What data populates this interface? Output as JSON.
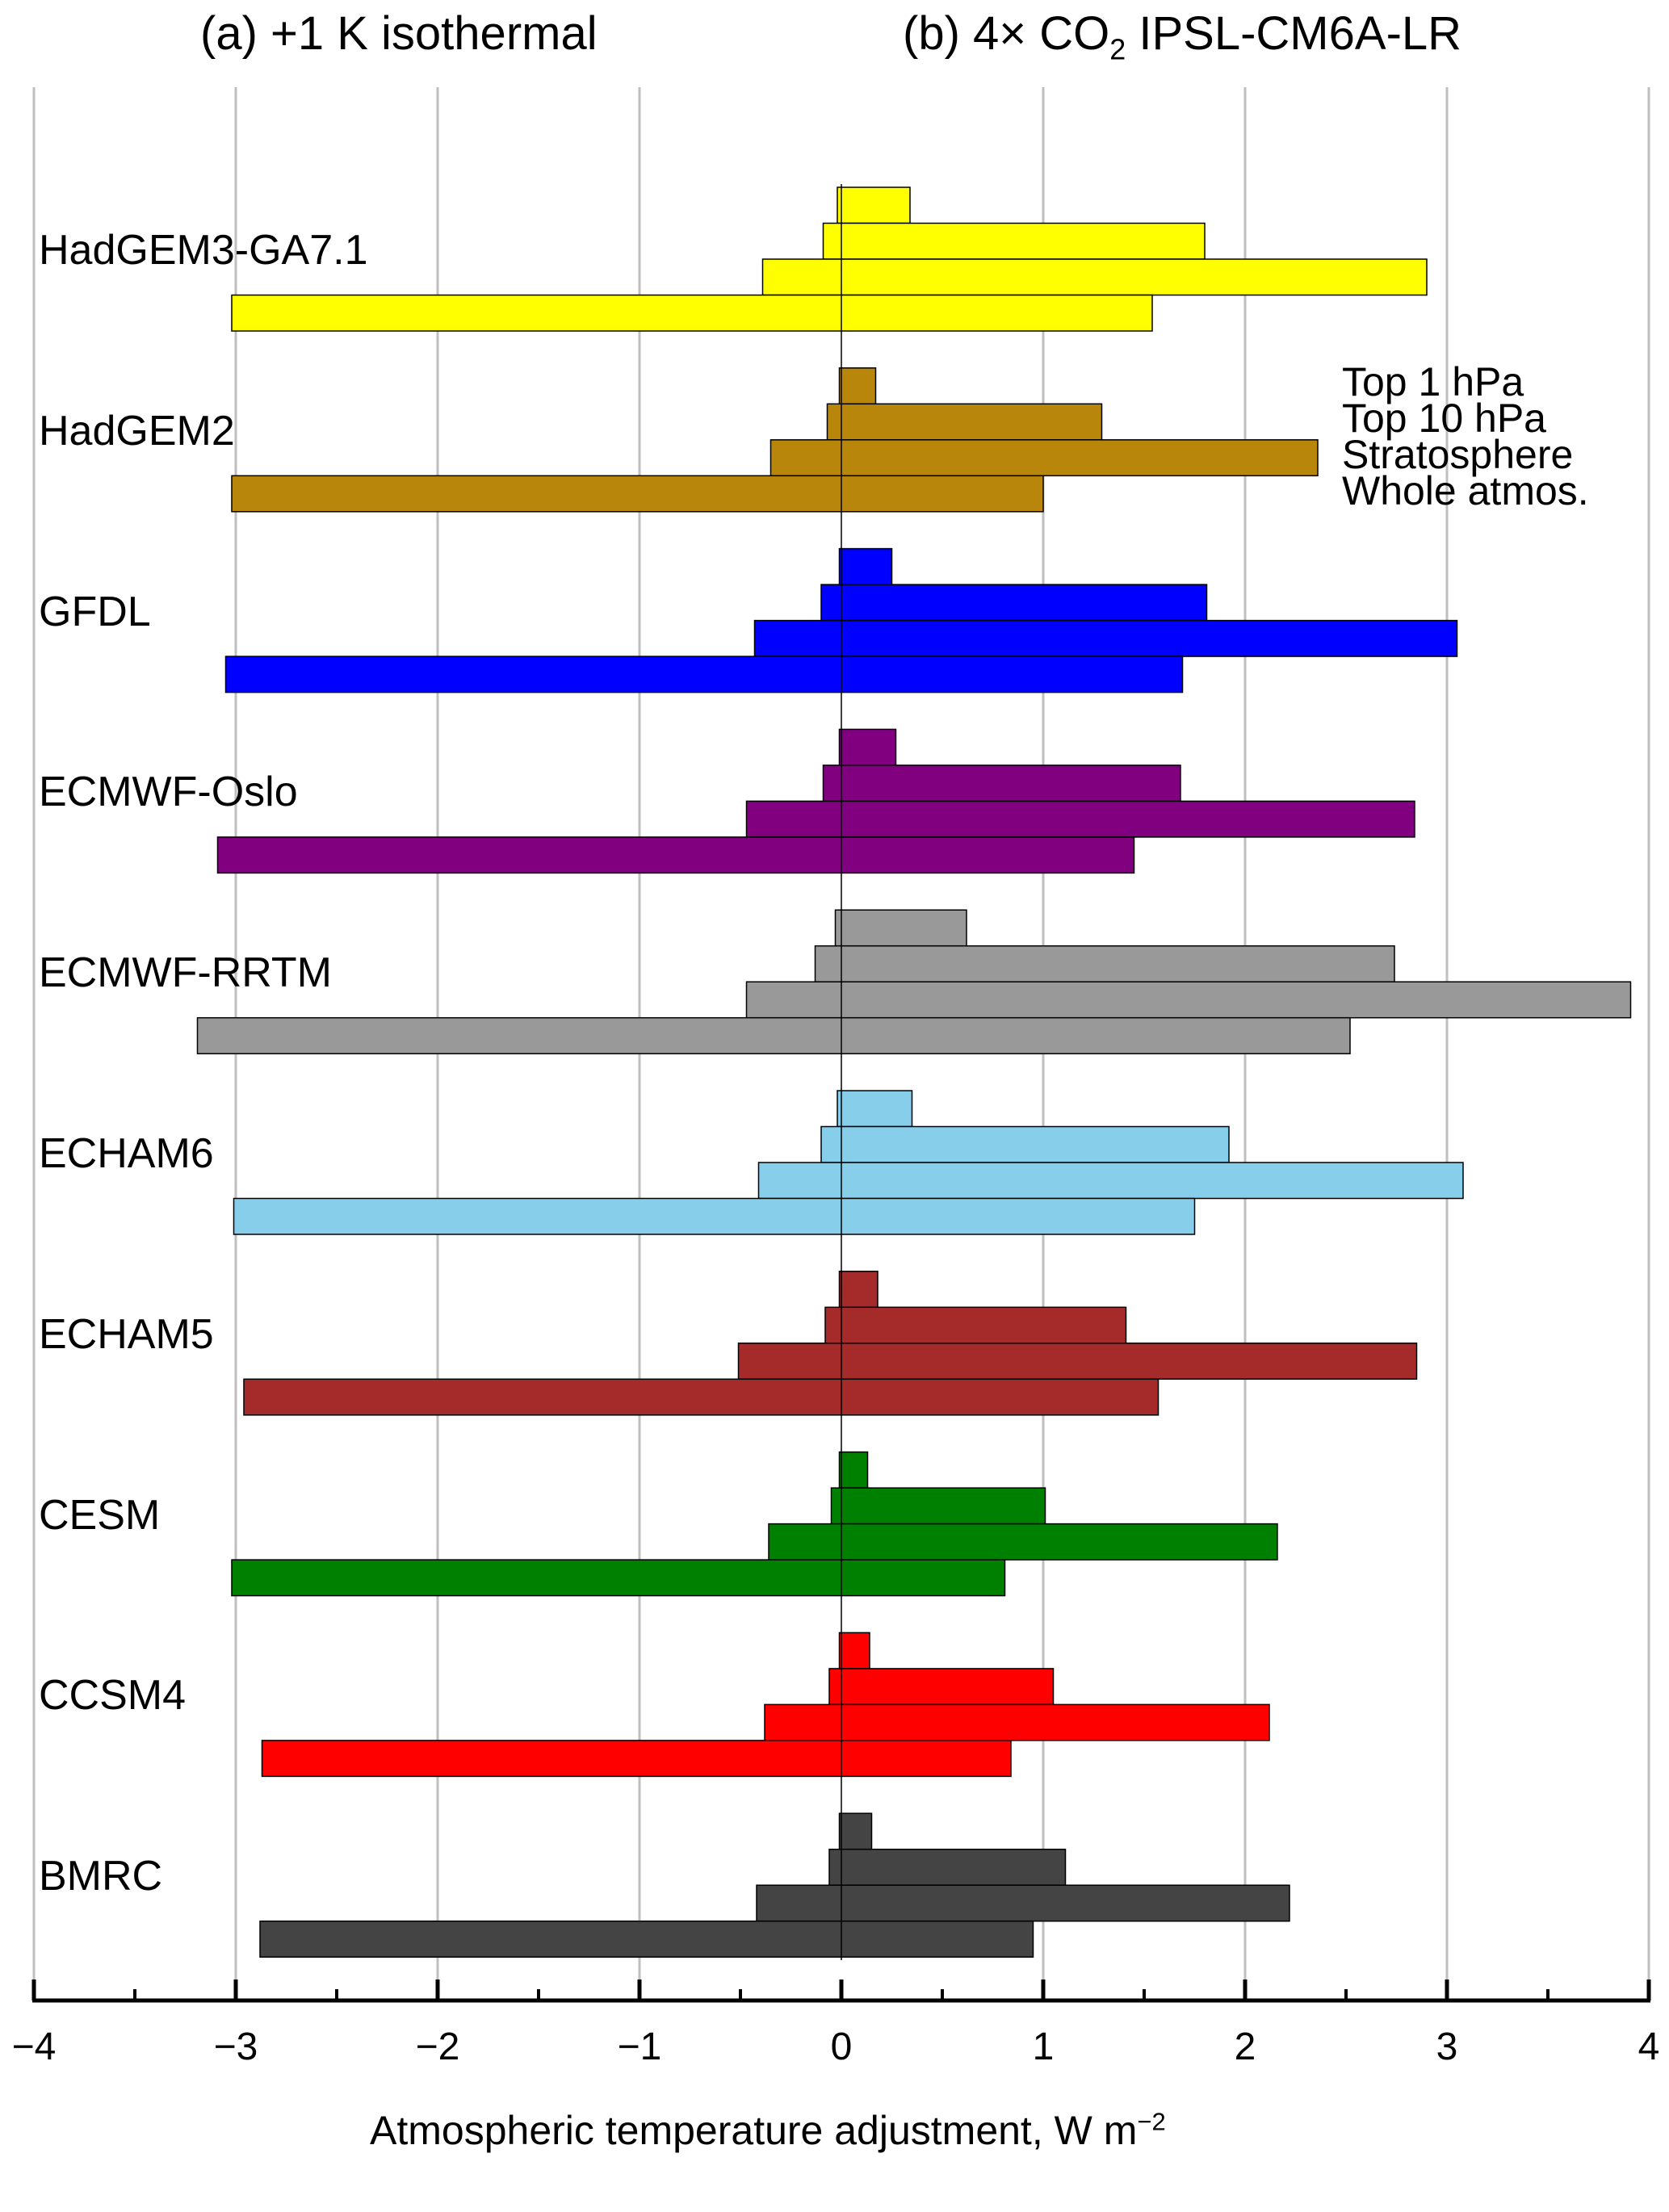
{
  "titles": {
    "a": "(a) +1 K isothermal",
    "b_prefix": "(b) 4× CO",
    "b_sub": "2",
    "b_suffix": " IPSL-CM6A-LR"
  },
  "chart_data": {
    "type": "bar",
    "orientation": "horizontal",
    "xlabel_main": "Atmospheric temperature adjustment, W m",
    "xlabel_exp": "−2",
    "xlim": [
      -4,
      4
    ],
    "xticks": [
      -4,
      -3,
      -2,
      -1,
      0,
      1,
      2,
      3,
      4
    ],
    "tick_labels": [
      "−4",
      "−3",
      "−2",
      "−1",
      "0",
      "1",
      "2",
      "3",
      "4"
    ],
    "grid": "vertical",
    "layers": [
      "Top 1 hPa",
      "Top 10 hPa",
      "Stratosphere",
      "Whole atmos."
    ],
    "models": [
      {
        "name": "HadGEM3-GA7.1",
        "color": "#ffff00",
        "bars": [
          [
            -0.02,
            0.34
          ],
          [
            -0.09,
            1.8
          ],
          [
            -0.39,
            2.9
          ],
          [
            -3.02,
            1.54
          ]
        ]
      },
      {
        "name": "HadGEM2",
        "color": "#b8860b",
        "bars": [
          [
            -0.01,
            0.17
          ],
          [
            -0.07,
            1.29
          ],
          [
            -0.35,
            2.36
          ],
          [
            -3.02,
            1.0
          ]
        ]
      },
      {
        "name": "GFDL",
        "color": "#0000ff",
        "bars": [
          [
            -0.01,
            0.25
          ],
          [
            -0.1,
            1.81
          ],
          [
            -0.43,
            3.05
          ],
          [
            -3.05,
            1.69
          ]
        ]
      },
      {
        "name": "ECMWF-Oslo",
        "color": "#800080",
        "bars": [
          [
            -0.01,
            0.27
          ],
          [
            -0.09,
            1.68
          ],
          [
            -0.47,
            2.84
          ],
          [
            -3.09,
            1.45
          ]
        ]
      },
      {
        "name": "ECMWF-RRTM",
        "color": "#999999",
        "bars": [
          [
            -0.03,
            0.62
          ],
          [
            -0.13,
            2.74
          ],
          [
            -0.47,
            3.91
          ],
          [
            -3.19,
            2.52
          ]
        ]
      },
      {
        "name": "ECHAM6",
        "color": "#87ceeb",
        "bars": [
          [
            -0.02,
            0.35
          ],
          [
            -0.1,
            1.92
          ],
          [
            -0.41,
            3.08
          ],
          [
            -3.01,
            1.75
          ]
        ]
      },
      {
        "name": "ECHAM5",
        "color": "#a52a2a",
        "bars": [
          [
            -0.01,
            0.18
          ],
          [
            -0.08,
            1.41
          ],
          [
            -0.51,
            2.85
          ],
          [
            -2.96,
            1.57
          ]
        ]
      },
      {
        "name": "CESM",
        "color": "#008000",
        "bars": [
          [
            -0.01,
            0.13
          ],
          [
            -0.05,
            1.01
          ],
          [
            -0.36,
            2.16
          ],
          [
            -3.02,
            0.81
          ]
        ]
      },
      {
        "name": "CCSM4",
        "color": "#ff0000",
        "bars": [
          [
            -0.01,
            0.14
          ],
          [
            -0.06,
            1.05
          ],
          [
            -0.38,
            2.12
          ],
          [
            -2.87,
            0.84
          ]
        ]
      },
      {
        "name": "BMRC",
        "color": "#444444",
        "bars": [
          [
            -0.01,
            0.15
          ],
          [
            -0.06,
            1.11
          ],
          [
            -0.42,
            2.22
          ],
          [
            -2.88,
            0.95
          ]
        ]
      }
    ]
  }
}
